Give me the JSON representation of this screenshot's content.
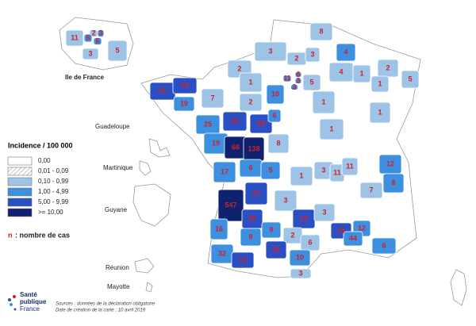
{
  "legend": {
    "title": "Incidence / 100 000",
    "items": [
      {
        "label": "0,00",
        "color": "#ffffff"
      },
      {
        "label": "0,01 - 0,09",
        "color": "#ffffff",
        "pattern": "hatch"
      },
      {
        "label": "0,10 - 0,99",
        "color": "#9dc3e6"
      },
      {
        "label": "1,00 - 4,99",
        "color": "#3d8fe0"
      },
      {
        "label": "5,00 - 9,99",
        "color": "#2a4fc4"
      },
      {
        "label": ">= 10,00",
        "color": "#0f2270"
      }
    ],
    "note_symbol": "n",
    "note_text": ": nombre de cas"
  },
  "insets": {
    "idf": "Ile de France",
    "guadeloupe": "Guadeloupe",
    "martinique": "Martinique",
    "guyane": "Guyane",
    "reunion": "Réunion",
    "mayotte": "Mayotte"
  },
  "departments": [
    {
      "cases": 2,
      "color": "#9dc3e6"
    },
    {
      "cases": 3,
      "color": "#3d8fe0"
    },
    {
      "cases": 11,
      "color": "#9dc3e6"
    },
    {
      "cases": 6,
      "color": "#3d8fe0"
    },
    {
      "cases": 6,
      "color": "#3d8fe0"
    },
    {
      "cases": 3,
      "color": "#9dc3e6"
    },
    {
      "cases": 5,
      "color": "#9dc3e6"
    },
    {
      "cases": 8,
      "color": "#9dc3e6"
    },
    {
      "cases": 3,
      "color": "#9dc3e6"
    },
    {
      "cases": 4,
      "color": "#3d8fe0"
    },
    {
      "cases": 2,
      "color": "#9dc3e6"
    },
    {
      "cases": 2,
      "color": "#9dc3e6"
    },
    {
      "cases": 3,
      "color": "#9dc3e6"
    },
    {
      "cases": 2,
      "color": "#9dc3e6"
    },
    {
      "cases": 11,
      "color": "#3d8fe0"
    },
    {
      "cases": 6,
      "color": "#3d8fe0"
    },
    {
      "cases": 3,
      "color": "#3d8fe0"
    },
    {
      "cases": 3,
      "color": "#3d8fe0"
    },
    {
      "cases": 5,
      "color": "#9dc3e6"
    },
    {
      "cases": 4,
      "color": "#9dc3e6"
    },
    {
      "cases": 1,
      "color": "#9dc3e6"
    },
    {
      "cases": 5,
      "color": "#9dc3e6"
    },
    {
      "cases": 1,
      "color": "#9dc3e6"
    },
    {
      "cases": 1,
      "color": "#9dc3e6"
    },
    {
      "cases": 91,
      "color": "#2a4fc4"
    },
    {
      "cases": 93,
      "color": "#2a4fc4"
    },
    {
      "cases": 7,
      "color": "#9dc3e6"
    },
    {
      "cases": 19,
      "color": "#3d8fe0"
    },
    {
      "cases": 2,
      "color": "#9dc3e6"
    },
    {
      "cases": 10,
      "color": "#3d8fe0"
    },
    {
      "cases": 1,
      "color": "#9dc3e6"
    },
    {
      "cases": 1,
      "color": "#9dc3e6"
    },
    {
      "cases": 25,
      "color": "#3d8fe0"
    },
    {
      "cases": 91,
      "color": "#2a4fc4"
    },
    {
      "cases": 88,
      "color": "#2a4fc4"
    },
    {
      "cases": 6,
      "color": "#3d8fe0"
    },
    {
      "cases": 8,
      "color": "#9dc3e6"
    },
    {
      "cases": 19,
      "color": "#3d8fe0"
    },
    {
      "cases": 66,
      "color": "#0f2270"
    },
    {
      "cases": 138,
      "color": "#0f2270"
    },
    {
      "cases": 1,
      "color": "#9dc3e6"
    },
    {
      "cases": 17,
      "color": "#3d8fe0"
    },
    {
      "cases": 6,
      "color": "#3d8fe0"
    },
    {
      "cases": 5,
      "color": "#3d8fe0"
    },
    {
      "cases": 1,
      "color": "#9dc3e6"
    },
    {
      "cases": 3,
      "color": "#9dc3e6"
    },
    {
      "cases": 11,
      "color": "#9dc3e6"
    },
    {
      "cases": 11,
      "color": "#9dc3e6"
    },
    {
      "cases": 12,
      "color": "#3d8fe0"
    },
    {
      "cases": 8,
      "color": "#3d8fe0"
    },
    {
      "cases": 7,
      "color": "#9dc3e6"
    },
    {
      "cases": 21,
      "color": "#2a4fc4"
    },
    {
      "cases": 547,
      "color": "#0f2270"
    },
    {
      "cases": 20,
      "color": "#2a4fc4"
    },
    {
      "cases": 3,
      "color": "#9dc3e6"
    },
    {
      "cases": 22,
      "color": "#2a4fc4"
    },
    {
      "cases": 3,
      "color": "#9dc3e6"
    },
    {
      "cases": 33,
      "color": "#2a4fc4"
    },
    {
      "cases": 12,
      "color": "#3d8fe0"
    },
    {
      "cases": 44,
      "color": "#3d8fe0"
    },
    {
      "cases": 16,
      "color": "#3d8fe0"
    },
    {
      "cases": 8,
      "color": "#3d8fe0"
    },
    {
      "cases": 9,
      "color": "#3d8fe0"
    },
    {
      "cases": 2,
      "color": "#9dc3e6"
    },
    {
      "cases": 6,
      "color": "#9dc3e6"
    },
    {
      "cases": 6,
      "color": "#3d8fe0"
    },
    {
      "cases": 32,
      "color": "#3d8fe0"
    },
    {
      "cases": 15,
      "color": "#2a4fc4"
    },
    {
      "cases": 60,
      "color": "#2a4fc4"
    },
    {
      "cases": 10,
      "color": "#3d8fe0"
    },
    {
      "cases": 3,
      "color": "#9dc3e6"
    }
  ],
  "sources": {
    "line1": "Sources : données de la déclaration obligatoire",
    "line2": "Date de création de la carte : 10 avril 2019"
  },
  "logo": {
    "line1": "Santé",
    "line2": "publique",
    "line3": "France"
  }
}
